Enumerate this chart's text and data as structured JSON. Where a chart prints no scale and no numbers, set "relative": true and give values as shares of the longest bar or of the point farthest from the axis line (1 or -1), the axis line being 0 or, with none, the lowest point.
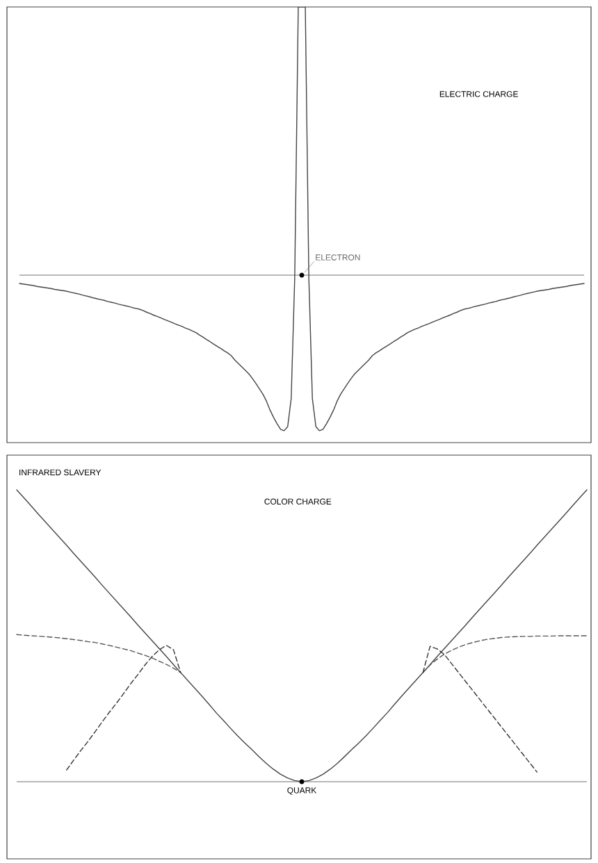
{
  "chart_data": [
    {
      "type": "line",
      "relative": true,
      "title": "ELECTRIC CHARGE",
      "annotations": [
        "ELECTRON"
      ],
      "categories": [
        null,
        null,
        null,
        null,
        null,
        null,
        null,
        null,
        null,
        null,
        null,
        null,
        null,
        null,
        null,
        null,
        null,
        null,
        null,
        null,
        null,
        null,
        null,
        null,
        null,
        null,
        null,
        null,
        null,
        null,
        null,
        null,
        null,
        null,
        null,
        null,
        null,
        null,
        null,
        null,
        null,
        null,
        null,
        null,
        null,
        null,
        null,
        null,
        null,
        null,
        null,
        null,
        null,
        null,
        null,
        null,
        null,
        null,
        null,
        null,
        null,
        null,
        null,
        null,
        null,
        null,
        null,
        null,
        null,
        null,
        null,
        null,
        null,
        null,
        null,
        null,
        null,
        null,
        null,
        null,
        null,
        null,
        null,
        null,
        null,
        null,
        null,
        null,
        null,
        null,
        null,
        null,
        null,
        null,
        null,
        null,
        null,
        null,
        null,
        null,
        null,
        null,
        null,
        null,
        null,
        null,
        null,
        null,
        null,
        null,
        null,
        null,
        null,
        null,
        null,
        null,
        null,
        null,
        null,
        null,
        null,
        null,
        null,
        null,
        null,
        null,
        null,
        null,
        null,
        null,
        null,
        null,
        null,
        null,
        null,
        null,
        null,
        null,
        null,
        null,
        null,
        null,
        null,
        null,
        null,
        null,
        null,
        null,
        null,
        null,
        null,
        null,
        null,
        null,
        null,
        null,
        null,
        null,
        null,
        null,
        null
      ],
      "series": [
        {
          "color": "#444444",
          "line_style": "solid",
          "values": [
            -0.031,
            -0.033,
            -0.035,
            -0.037,
            -0.039,
            -0.042,
            -0.044,
            -0.046,
            -0.048,
            -0.05,
            -0.053,
            -0.055,
            -0.057,
            -0.059,
            -0.062,
            -0.065,
            -0.068,
            -0.071,
            -0.075,
            -0.078,
            -0.081,
            -0.085,
            -0.088,
            -0.091,
            -0.094,
            -0.098,
            -0.101,
            -0.104,
            -0.108,
            -0.111,
            -0.114,
            -0.117,
            -0.121,
            -0.124,
            -0.127,
            -0.132,
            -0.138,
            -0.143,
            -0.149,
            -0.154,
            -0.159,
            -0.165,
            -0.17,
            -0.175,
            -0.181,
            -0.186,
            -0.191,
            -0.197,
            -0.202,
            -0.208,
            -0.214,
            -0.223,
            -0.231,
            -0.24,
            -0.248,
            -0.257,
            -0.265,
            -0.273,
            -0.282,
            -0.29,
            -0.3,
            -0.316,
            -0.329,
            -0.342,
            -0.355,
            -0.368,
            -0.385,
            -0.404,
            -0.424,
            -0.444,
            -0.47,
            -0.503,
            -0.53,
            -0.554,
            -0.575,
            -0.58,
            -0.565,
            -0.46,
            -0.01,
            1,
            1,
            1,
            -0.01,
            -0.46,
            -0.565,
            -0.58,
            -0.575,
            -0.554,
            -0.53,
            -0.503,
            -0.47,
            -0.444,
            -0.424,
            -0.404,
            -0.385,
            -0.368,
            -0.355,
            -0.342,
            -0.329,
            -0.316,
            -0.3,
            -0.29,
            -0.282,
            -0.273,
            -0.265,
            -0.257,
            -0.248,
            -0.24,
            -0.231,
            -0.223,
            -0.214,
            -0.208,
            -0.202,
            -0.197,
            -0.191,
            -0.186,
            -0.181,
            -0.175,
            -0.17,
            -0.165,
            -0.159,
            -0.154,
            -0.149,
            -0.143,
            -0.138,
            -0.132,
            -0.127,
            -0.124,
            -0.121,
            -0.117,
            -0.114,
            -0.111,
            -0.108,
            -0.104,
            -0.101,
            -0.098,
            -0.094,
            -0.091,
            -0.088,
            -0.085,
            -0.081,
            -0.078,
            -0.075,
            -0.071,
            -0.068,
            -0.065,
            -0.062,
            -0.059,
            -0.057,
            -0.055,
            -0.053,
            -0.05,
            -0.048,
            -0.046,
            -0.044,
            -0.042,
            -0.039,
            -0.037,
            -0.035,
            -0.033,
            -0.031
          ]
        }
      ]
    },
    {
      "type": "line",
      "relative": true,
      "title": "COLOR CHARGE",
      "annotations": [
        "INFRARED SLAVERY",
        "QUARK"
      ],
      "categories": [
        null,
        null,
        null,
        null,
        null,
        null,
        null,
        null,
        null,
        null,
        null,
        null,
        null,
        null,
        null,
        null,
        null,
        null,
        null,
        null,
        null,
        null,
        null,
        null,
        null,
        null,
        null,
        null,
        null,
        null,
        null,
        null,
        null,
        null,
        null,
        null,
        null,
        null,
        null,
        null,
        null,
        null,
        null,
        null,
        null,
        null,
        null,
        null,
        null,
        null,
        null,
        null,
        null,
        null,
        null,
        null,
        null,
        null,
        null,
        null,
        null,
        null,
        null,
        null,
        null,
        null,
        null,
        null,
        null,
        null,
        null,
        null,
        null,
        null,
        null,
        null,
        null,
        null,
        null,
        null,
        null
      ],
      "series": [
        {
          "color": "#444444",
          "line_style": "solid",
          "values": [
            1.0,
            0.973,
            0.946,
            0.918,
            0.891,
            0.864,
            0.837,
            0.81,
            0.782,
            0.755,
            0.728,
            0.701,
            0.673,
            0.646,
            0.619,
            0.592,
            0.565,
            0.537,
            0.51,
            0.483,
            0.456,
            0.429,
            0.401,
            0.374,
            0.347,
            0.32,
            0.293,
            0.265,
            0.236,
            0.21,
            0.183,
            0.157,
            0.133,
            0.11,
            0.086,
            0.063,
            0.043,
            0.026,
            0.013,
            0.004,
            0,
            0.004,
            0.013,
            0.026,
            0.043,
            0.063,
            0.086,
            0.11,
            0.133,
            0.157,
            0.183,
            0.21,
            0.236,
            0.265,
            0.293,
            0.32,
            0.347,
            0.374,
            0.401,
            0.429,
            0.456,
            0.483,
            0.51,
            0.537,
            0.565,
            0.592,
            0.619,
            0.646,
            0.673,
            0.701,
            0.728,
            0.755,
            0.782,
            0.81,
            0.837,
            0.864,
            0.891,
            0.918,
            0.946,
            0.973,
            1.0
          ]
        },
        {
          "color": "#555555",
          "line_style": "dashed",
          "values": [
            0.504,
            0.502,
            0.5,
            0.499,
            0.497,
            0.495,
            0.493,
            0.49,
            0.487,
            0.484,
            0.48,
            0.477,
            0.472,
            0.467,
            0.461,
            0.455,
            0.449,
            0.441,
            0.433,
            0.424,
            0.413,
            0.402,
            0.389,
            0.374,
            null,
            null,
            null,
            null,
            null,
            null,
            null,
            null,
            null,
            null,
            null,
            null,
            null,
            null,
            null,
            null,
            null,
            null,
            null,
            null,
            null,
            null,
            null,
            null,
            null,
            null,
            null,
            null,
            null,
            null,
            null,
            null,
            null,
            0.374,
            0.4,
            0.42,
            0.437,
            0.45,
            0.461,
            0.47,
            0.477,
            0.483,
            0.488,
            0.491,
            0.494,
            0.496,
            0.497,
            0.498,
            0.498,
            0.499,
            0.499,
            0.499,
            0.5,
            0.5,
            0.5,
            0.5,
            0.5
          ]
        },
        {
          "color": "#333333",
          "line_style": "dashed",
          "values": [
            null,
            null,
            null,
            null,
            null,
            null,
            null,
            0.04,
            0.074,
            0.107,
            0.138,
            0.171,
            0.205,
            0.238,
            0.269,
            0.302,
            0.336,
            0.367,
            0.4,
            0.429,
            0.452,
            0.467,
            0.452,
            0.374,
            null,
            null,
            null,
            null,
            null,
            null,
            null,
            null,
            null,
            null,
            null,
            null,
            null,
            null,
            null,
            null,
            null,
            null,
            null,
            null,
            null,
            null,
            null,
            null,
            null,
            null,
            null,
            null,
            null,
            null,
            null,
            null,
            null,
            0.374,
            0.464,
            0.455,
            0.436,
            0.405,
            0.374,
            0.343,
            0.312,
            0.281,
            0.25,
            0.219,
            0.188,
            0.157,
            0.126,
            0.095,
            0.064,
            0.033,
            null,
            null,
            null,
            null,
            null,
            null,
            null
          ]
        }
      ]
    }
  ]
}
